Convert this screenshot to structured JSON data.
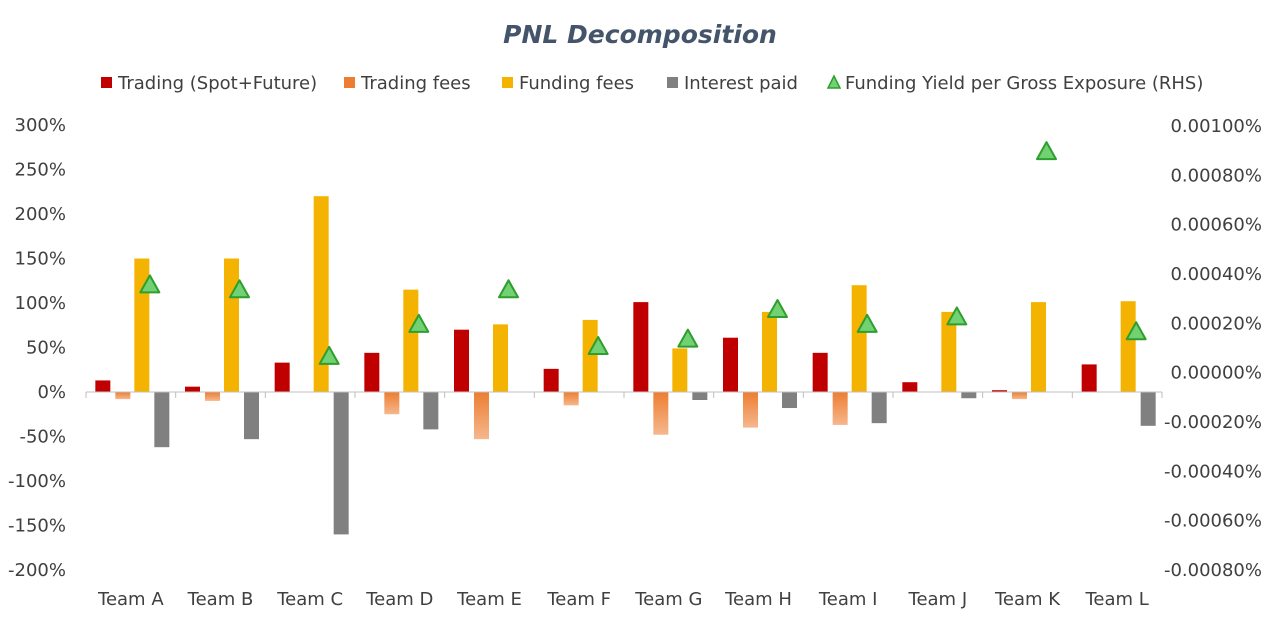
{
  "chart_data": {
    "type": "bar",
    "title": "PNL Decomposition",
    "categories": [
      "Team A",
      "Team B",
      "Team C",
      "Team D",
      "Team E",
      "Team F",
      "Team G",
      "Team H",
      "Team I",
      "Team J",
      "Team K",
      "Team L"
    ],
    "ylim": [
      -200,
      300
    ],
    "y_ticks": [
      "300%",
      "250%",
      "200%",
      "150%",
      "100%",
      "50%",
      "0%",
      "-50%",
      "-100%",
      "-150%",
      "-200%"
    ],
    "y2lim": [
      -0.0008,
      0.001
    ],
    "y2_ticks": [
      "0.00100%",
      "0.00080%",
      "0.00060%",
      "0.00040%",
      "0.00020%",
      "0.00000%",
      "-0.00020%",
      "-0.00040%",
      "-0.00060%",
      "-0.00080%"
    ],
    "legend_position": "top",
    "grid": false,
    "series": [
      {
        "name": "Trading (Spot+Future)",
        "type": "bar",
        "color": "#c00000",
        "values": [
          13,
          6,
          33,
          44,
          70,
          26,
          101,
          61,
          44,
          11,
          2,
          31
        ]
      },
      {
        "name": "Trading fees",
        "type": "bar",
        "color": "#ed7d31",
        "values": [
          -8,
          -10,
          0,
          -25,
          -53,
          -15,
          -48,
          -40,
          -37,
          0,
          -8,
          0
        ]
      },
      {
        "name": "Funding fees",
        "type": "bar",
        "color": "#f4b300",
        "values": [
          150,
          150,
          220,
          115,
          76,
          81,
          49,
          90,
          120,
          90,
          101,
          102
        ]
      },
      {
        "name": "Interest paid",
        "type": "bar",
        "color": "#808080",
        "values": [
          -62,
          -53,
          -160,
          -42,
          0,
          0,
          -9,
          -18,
          -35,
          -7,
          0,
          -38
        ]
      },
      {
        "name": "Funding Yield per Gross Exposure (RHS)",
        "type": "scatter",
        "axis": "right",
        "marker": "triangle",
        "color": "#66cc66",
        "values": [
          0.00036,
          0.00034,
          7e-05,
          0.0002,
          0.00034,
          0.00011,
          0.00014,
          0.00026,
          0.0002,
          0.00023,
          0.0009,
          0.00017
        ]
      }
    ]
  }
}
